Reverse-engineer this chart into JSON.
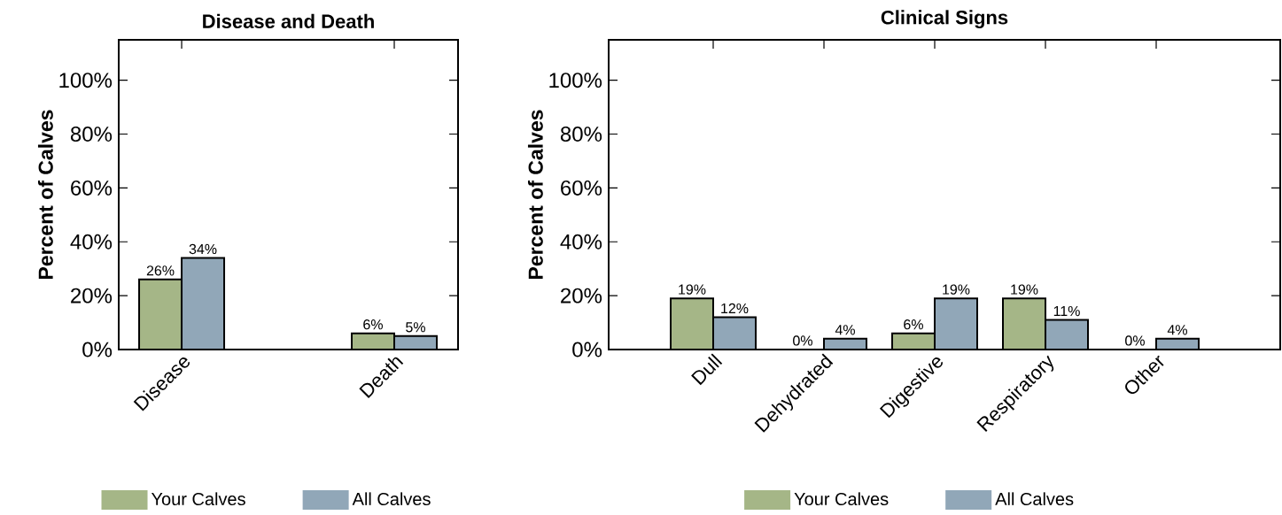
{
  "chart_data": [
    {
      "type": "bar",
      "title": "Disease and Death",
      "ylabel": "Percent of Calves",
      "categories": [
        "Disease",
        "Death"
      ],
      "series": [
        {
          "name": "Your Calves",
          "color": "#a5b687",
          "values": [
            26,
            6
          ],
          "value_labels": [
            "26%",
            "6%"
          ]
        },
        {
          "name": "All Calves",
          "color": "#91a7b8",
          "values": [
            34,
            5
          ],
          "value_labels": [
            "34%",
            "5%"
          ]
        }
      ],
      "ylim": [
        0,
        115
      ],
      "yticks": [
        {
          "value": 0,
          "label": "0%"
        },
        {
          "value": 20,
          "label": "20%"
        },
        {
          "value": 40,
          "label": "40%"
        },
        {
          "value": 60,
          "label": "60%"
        },
        {
          "value": 80,
          "label": "80%"
        },
        {
          "value": 100,
          "label": "100%"
        }
      ],
      "legend": "bottom"
    },
    {
      "type": "bar",
      "title": "Clinical Signs",
      "ylabel": "Percent of Calves",
      "categories": [
        "Dull",
        "Dehydrated",
        "Digestive",
        "Respiratory",
        "Other"
      ],
      "series": [
        {
          "name": "Your Calves",
          "color": "#a5b687",
          "values": [
            19,
            0,
            6,
            19,
            0
          ],
          "value_labels": [
            "19%",
            "0%",
            "6%",
            "19%",
            "0%"
          ]
        },
        {
          "name": "All Calves",
          "color": "#91a7b8",
          "values": [
            12,
            4,
            19,
            11,
            4
          ],
          "value_labels": [
            "12%",
            "4%",
            "19%",
            "11%",
            "4%"
          ]
        }
      ],
      "ylim": [
        0,
        115
      ],
      "yticks": [
        {
          "value": 0,
          "label": "0%"
        },
        {
          "value": 20,
          "label": "20%"
        },
        {
          "value": 40,
          "label": "40%"
        },
        {
          "value": 60,
          "label": "60%"
        },
        {
          "value": 80,
          "label": "80%"
        },
        {
          "value": 100,
          "label": "100%"
        }
      ],
      "legend": "bottom"
    }
  ]
}
